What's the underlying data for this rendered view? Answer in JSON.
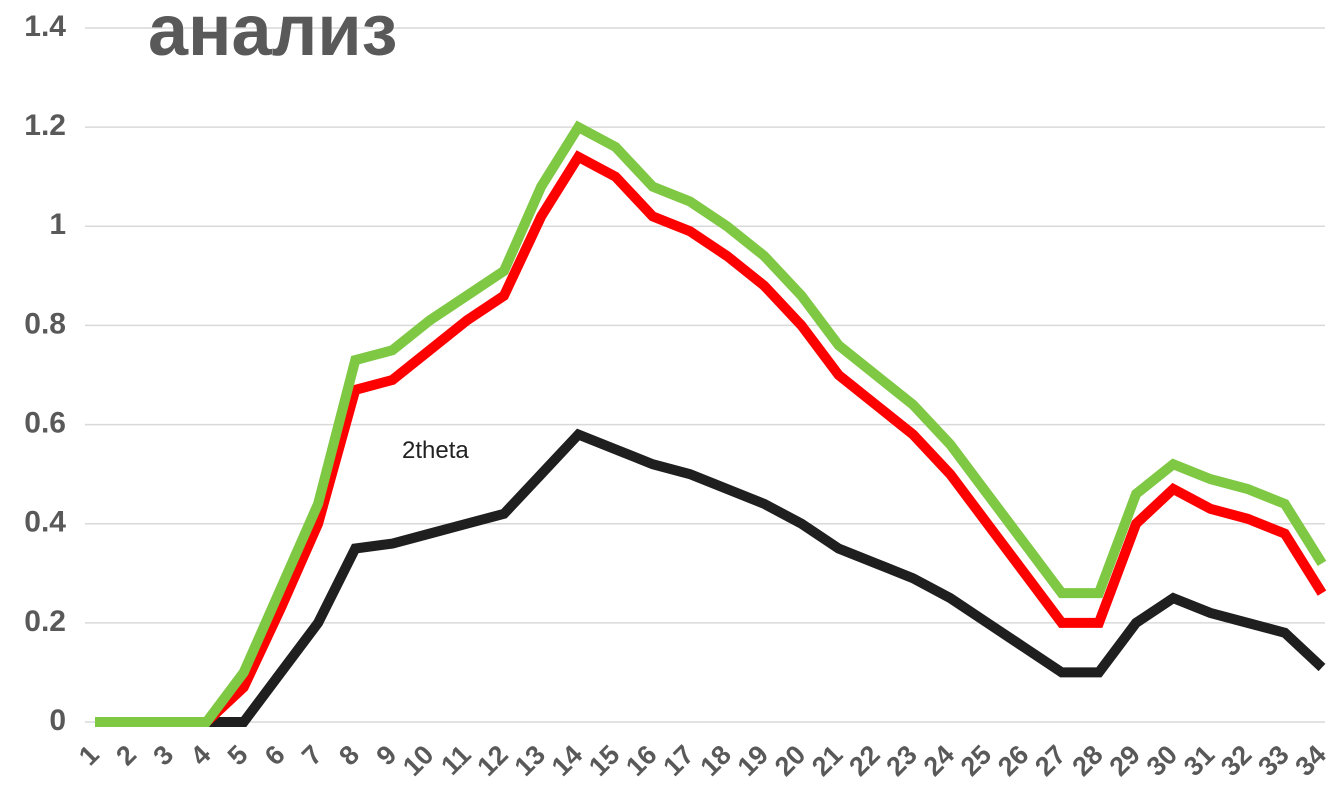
{
  "chart_data": {
    "type": "line",
    "title": "анализ",
    "annotation": "2theta",
    "categories": [
      "1",
      "2",
      "3",
      "4",
      "5",
      "6",
      "7",
      "8",
      "9",
      "10",
      "11",
      "12",
      "13",
      "14",
      "15",
      "16",
      "17",
      "18",
      "19",
      "20",
      "21",
      "22",
      "23",
      "24",
      "25",
      "26",
      "27",
      "28",
      "29",
      "30",
      "31",
      "32",
      "33",
      "34"
    ],
    "series": [
      {
        "color": "#1f1f1f",
        "values": [
          0,
          0,
          0,
          0,
          0,
          0.1,
          0.2,
          0.35,
          0.36,
          0.38,
          0.4,
          0.42,
          0.5,
          0.58,
          0.55,
          0.52,
          0.5,
          0.47,
          0.44,
          0.4,
          0.35,
          0.32,
          0.29,
          0.25,
          0.2,
          0.15,
          0.1,
          0.1,
          0.2,
          0.25,
          0.22,
          0.2,
          0.18,
          0.11
        ]
      },
      {
        "color": "#ff0000",
        "values": [
          0,
          0,
          0,
          0,
          0.07,
          0.23,
          0.4,
          0.67,
          0.69,
          0.75,
          0.81,
          0.86,
          1.02,
          1.14,
          1.1,
          1.02,
          0.99,
          0.94,
          0.88,
          0.8,
          0.7,
          0.64,
          0.58,
          0.5,
          0.4,
          0.3,
          0.2,
          0.2,
          0.4,
          0.47,
          0.43,
          0.41,
          0.38,
          0.26
        ]
      },
      {
        "color": "#7ec843",
        "values": [
          0,
          0,
          0,
          0,
          0.1,
          0.27,
          0.44,
          0.73,
          0.75,
          0.81,
          0.86,
          0.91,
          1.08,
          1.2,
          1.16,
          1.08,
          1.05,
          1.0,
          0.94,
          0.86,
          0.76,
          0.7,
          0.64,
          0.56,
          0.46,
          0.36,
          0.26,
          0.26,
          0.46,
          0.52,
          0.49,
          0.47,
          0.44,
          0.32
        ]
      }
    ],
    "ylim": [
      0,
      1.4
    ],
    "yticks": [
      0,
      0.2,
      0.4,
      0.6,
      0.8,
      1,
      1.2,
      1.4
    ],
    "grid": true
  }
}
